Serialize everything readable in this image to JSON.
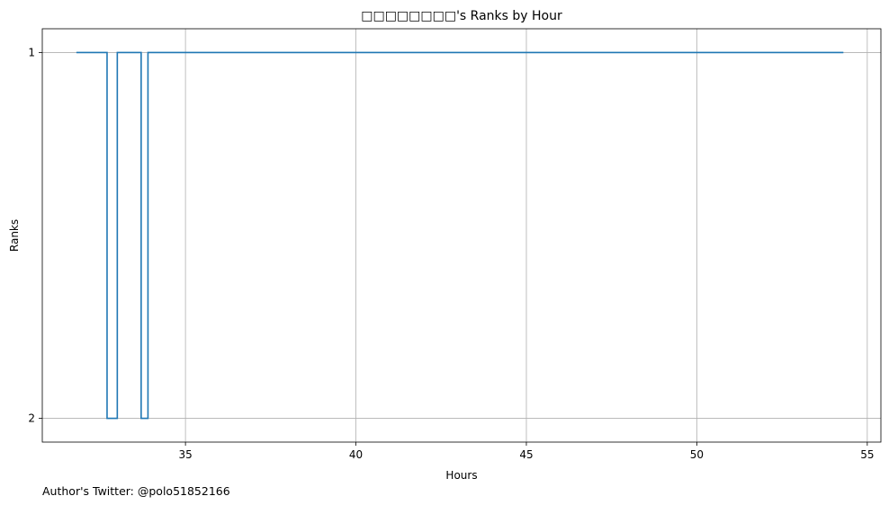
{
  "chart_data": {
    "type": "line",
    "step": "post",
    "title": "□□□□□□□□'s Ranks by Hour",
    "xlabel": "Hours",
    "ylabel": "Ranks",
    "xlim": [
      30.8,
      55.4
    ],
    "ylim": [
      2.065,
      0.935
    ],
    "y_inverted": true,
    "grid": true,
    "xticks": [
      35,
      40,
      45,
      50,
      55
    ],
    "yticks": [
      1,
      2
    ],
    "series": [
      {
        "color": "#1f77b4",
        "x": [
          31.8,
          32.7,
          33.0,
          33.7,
          33.9,
          54.3
        ],
        "y": [
          1,
          2,
          1,
          2,
          1,
          1
        ]
      }
    ]
  },
  "footer": {
    "text": "Author's Twitter: @polo51852166"
  }
}
